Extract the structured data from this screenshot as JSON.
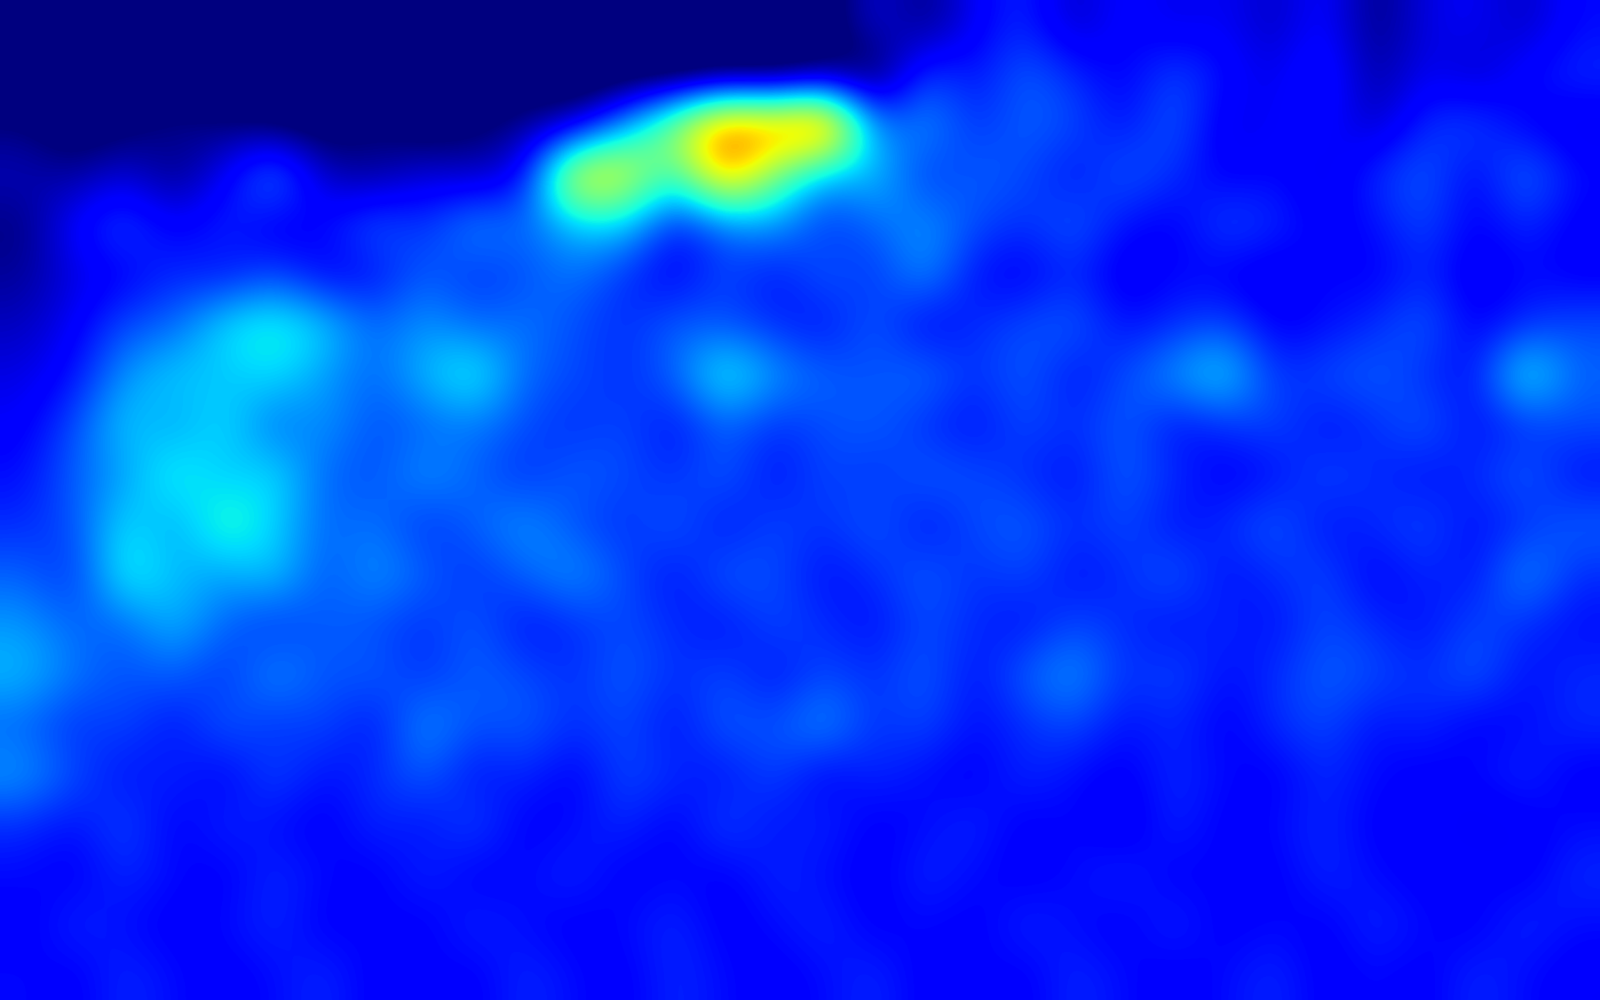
{
  "chart_data": {
    "type": "heatmap",
    "color": "jet",
    "tick_labels": false,
    "color_range": [
      0.1,
      1.0
    ],
    "cells": [
      [
        0.02,
        0.03,
        0.02,
        0.02,
        0.03,
        0.02,
        0.03,
        0.02,
        0.02,
        0.03,
        0.02,
        0.02,
        0.03,
        0.02,
        0.02,
        0.03,
        0.05,
        0.18,
        0.1,
        0.2,
        0.25,
        0.15,
        0.22,
        0.18,
        0.2,
        0.15,
        0.22,
        0.1,
        0.18,
        0.2,
        0.15,
        0.22
      ],
      [
        0.05,
        0.02,
        0.03,
        0.05,
        0.02,
        0.03,
        0.02,
        0.05,
        0.03,
        0.02,
        0.05,
        0.02,
        0.03,
        0.02,
        0.05,
        0.03,
        0.08,
        0.05,
        0.28,
        0.22,
        0.3,
        0.25,
        0.2,
        0.28,
        0.22,
        0.18,
        0.25,
        0.12,
        0.2,
        0.15,
        0.22,
        0.25
      ],
      [
        0.1,
        0.05,
        0.08,
        0.12,
        0.1,
        0.08,
        0.05,
        0.1,
        0.05,
        0.08,
        0.12,
        0.15,
        0.35,
        0.6,
        0.85,
        0.8,
        0.92,
        0.3,
        0.35,
        0.25,
        0.3,
        0.28,
        0.22,
        0.3,
        0.18,
        0.2,
        0.22,
        0.15,
        0.25,
        0.28,
        0.2,
        0.18
      ],
      [
        0.15,
        0.12,
        0.18,
        0.1,
        0.2,
        0.35,
        0.15,
        0.12,
        0.18,
        0.15,
        0.2,
        0.72,
        0.68,
        0.45,
        0.8,
        0.55,
        0.35,
        0.4,
        0.25,
        0.3,
        0.28,
        0.22,
        0.3,
        0.25,
        0.2,
        0.22,
        0.18,
        0.25,
        0.3,
        0.2,
        0.32,
        0.22
      ],
      [
        0.1,
        0.22,
        0.28,
        0.2,
        0.25,
        0.18,
        0.22,
        0.3,
        0.25,
        0.35,
        0.3,
        0.38,
        0.4,
        0.22,
        0.3,
        0.35,
        0.25,
        0.3,
        0.35,
        0.28,
        0.25,
        0.3,
        0.22,
        0.2,
        0.28,
        0.25,
        0.2,
        0.22,
        0.28,
        0.2,
        0.25,
        0.2
      ],
      [
        0.12,
        0.18,
        0.2,
        0.25,
        0.22,
        0.28,
        0.2,
        0.22,
        0.3,
        0.25,
        0.28,
        0.32,
        0.25,
        0.2,
        0.28,
        0.22,
        0.3,
        0.25,
        0.35,
        0.22,
        0.2,
        0.25,
        0.18,
        0.22,
        0.2,
        0.18,
        0.22,
        0.2,
        0.25,
        0.18,
        0.22,
        0.2
      ],
      [
        0.15,
        0.2,
        0.28,
        0.3,
        0.42,
        0.45,
        0.4,
        0.3,
        0.35,
        0.3,
        0.32,
        0.28,
        0.25,
        0.3,
        0.28,
        0.25,
        0.22,
        0.3,
        0.2,
        0.25,
        0.28,
        0.3,
        0.22,
        0.25,
        0.28,
        0.2,
        0.22,
        0.25,
        0.3,
        0.2,
        0.25,
        0.28
      ],
      [
        0.18,
        0.22,
        0.35,
        0.4,
        0.38,
        0.42,
        0.35,
        0.3,
        0.38,
        0.45,
        0.3,
        0.28,
        0.25,
        0.3,
        0.45,
        0.35,
        0.3,
        0.28,
        0.32,
        0.25,
        0.3,
        0.22,
        0.28,
        0.35,
        0.42,
        0.25,
        0.28,
        0.3,
        0.25,
        0.22,
        0.45,
        0.3
      ],
      [
        0.2,
        0.28,
        0.4,
        0.35,
        0.42,
        0.3,
        0.35,
        0.28,
        0.3,
        0.32,
        0.28,
        0.25,
        0.28,
        0.22,
        0.3,
        0.25,
        0.28,
        0.3,
        0.25,
        0.22,
        0.28,
        0.25,
        0.3,
        0.22,
        0.25,
        0.28,
        0.22,
        0.25,
        0.3,
        0.22,
        0.25,
        0.28
      ],
      [
        0.22,
        0.3,
        0.35,
        0.45,
        0.38,
        0.42,
        0.3,
        0.28,
        0.35,
        0.3,
        0.25,
        0.3,
        0.28,
        0.25,
        0.3,
        0.22,
        0.28,
        0.25,
        0.3,
        0.28,
        0.25,
        0.22,
        0.3,
        0.25,
        0.2,
        0.22,
        0.28,
        0.25,
        0.22,
        0.25,
        0.3,
        0.22
      ],
      [
        0.25,
        0.28,
        0.42,
        0.35,
        0.48,
        0.4,
        0.3,
        0.32,
        0.25,
        0.3,
        0.35,
        0.28,
        0.25,
        0.3,
        0.22,
        0.28,
        0.25,
        0.3,
        0.22,
        0.28,
        0.3,
        0.25,
        0.28,
        0.22,
        0.25,
        0.3,
        0.22,
        0.25,
        0.28,
        0.22,
        0.25,
        0.3
      ],
      [
        0.3,
        0.25,
        0.45,
        0.38,
        0.35,
        0.4,
        0.28,
        0.35,
        0.3,
        0.25,
        0.3,
        0.35,
        0.28,
        0.22,
        0.3,
        0.28,
        0.22,
        0.25,
        0.3,
        0.25,
        0.28,
        0.22,
        0.25,
        0.3,
        0.22,
        0.25,
        0.28,
        0.2,
        0.25,
        0.22,
        0.35,
        0.25
      ],
      [
        0.35,
        0.3,
        0.3,
        0.38,
        0.3,
        0.25,
        0.3,
        0.28,
        0.25,
        0.3,
        0.22,
        0.25,
        0.28,
        0.25,
        0.22,
        0.28,
        0.25,
        0.22,
        0.28,
        0.25,
        0.22,
        0.28,
        0.25,
        0.22,
        0.25,
        0.22,
        0.28,
        0.25,
        0.22,
        0.28,
        0.25,
        0.22
      ],
      [
        0.38,
        0.32,
        0.28,
        0.3,
        0.25,
        0.35,
        0.28,
        0.3,
        0.25,
        0.3,
        0.28,
        0.25,
        0.3,
        0.25,
        0.28,
        0.22,
        0.28,
        0.25,
        0.3,
        0.22,
        0.3,
        0.35,
        0.25,
        0.28,
        0.22,
        0.25,
        0.3,
        0.28,
        0.25,
        0.3,
        0.22,
        0.25
      ],
      [
        0.3,
        0.25,
        0.28,
        0.22,
        0.3,
        0.25,
        0.28,
        0.22,
        0.35,
        0.28,
        0.3,
        0.25,
        0.28,
        0.22,
        0.3,
        0.28,
        0.35,
        0.25,
        0.28,
        0.22,
        0.25,
        0.28,
        0.22,
        0.25,
        0.2,
        0.25,
        0.28,
        0.22,
        0.25,
        0.2,
        0.22,
        0.25
      ],
      [
        0.35,
        0.28,
        0.22,
        0.25,
        0.2,
        0.28,
        0.22,
        0.25,
        0.3,
        0.22,
        0.25,
        0.2,
        0.28,
        0.25,
        0.22,
        0.28,
        0.2,
        0.25,
        0.22,
        0.2,
        0.25,
        0.22,
        0.2,
        0.25,
        0.22,
        0.2,
        0.25,
        0.22,
        0.2,
        0.22,
        0.25,
        0.2
      ],
      [
        0.25,
        0.22,
        0.28,
        0.2,
        0.25,
        0.22,
        0.2,
        0.25,
        0.22,
        0.28,
        0.2,
        0.22,
        0.25,
        0.2,
        0.28,
        0.22,
        0.25,
        0.2,
        0.22,
        0.25,
        0.2,
        0.22,
        0.18,
        0.25,
        0.2,
        0.22,
        0.25,
        0.2,
        0.22,
        0.18,
        0.2,
        0.22
      ],
      [
        0.22,
        0.2,
        0.25,
        0.22,
        0.2,
        0.25,
        0.22,
        0.2,
        0.25,
        0.2,
        0.22,
        0.25,
        0.2,
        0.22,
        0.2,
        0.25,
        0.22,
        0.2,
        0.25,
        0.22,
        0.2,
        0.22,
        0.25,
        0.2,
        0.22,
        0.2,
        0.25,
        0.22,
        0.2,
        0.22,
        0.2,
        0.25
      ],
      [
        0.2,
        0.25,
        0.22,
        0.2,
        0.22,
        0.25,
        0.2,
        0.22,
        0.2,
        0.25,
        0.22,
        0.2,
        0.22,
        0.25,
        0.2,
        0.22,
        0.25,
        0.2,
        0.22,
        0.2,
        0.25,
        0.22,
        0.2,
        0.25,
        0.2,
        0.22,
        0.2,
        0.25,
        0.22,
        0.2,
        0.25,
        0.22
      ],
      [
        0.22,
        0.2,
        0.25,
        0.22,
        0.2,
        0.22,
        0.25,
        0.2,
        0.22,
        0.2,
        0.25,
        0.22,
        0.2,
        0.25,
        0.22,
        0.2,
        0.22,
        0.25,
        0.2,
        0.22,
        0.2,
        0.25,
        0.22,
        0.2,
        0.22,
        0.25,
        0.2,
        0.22,
        0.2,
        0.25,
        0.22,
        0.2
      ]
    ]
  }
}
